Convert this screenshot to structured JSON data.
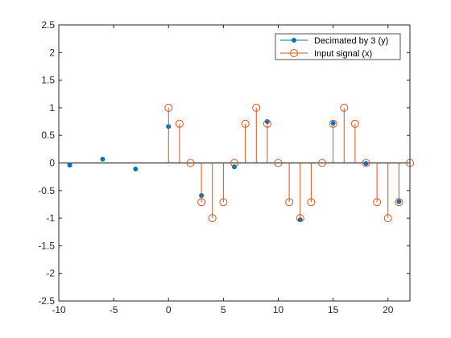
{
  "chart_data": {
    "type": "stem",
    "title": "",
    "xlabel": "",
    "ylabel": "",
    "xlim": [
      -10,
      22
    ],
    "ylim": [
      -2.5,
      2.5
    ],
    "grid": false,
    "legend_location": "top-right",
    "xticks": [
      "-10",
      "-5",
      "0",
      "5",
      "10",
      "15",
      "20"
    ],
    "yticks": [
      "-2.5",
      "-2",
      "-1.5",
      "-1",
      "-0.5",
      "0",
      "0.5",
      "1",
      "1.5",
      "2",
      "2.5"
    ],
    "series": [
      {
        "name": "Decimated by 3 (y)",
        "color": "#0072BD",
        "marker": "filled-circle",
        "stems": false,
        "x": [
          -9,
          -6,
          -3,
          0,
          3,
          6,
          9,
          12,
          15,
          18,
          21
        ],
        "y": [
          -0.04,
          0.07,
          -0.11,
          0.66,
          -0.59,
          -0.07,
          0.75,
          -1.03,
          0.72,
          -0.01,
          -0.7
        ]
      },
      {
        "name": "Input signal (x)",
        "color": "#D95319",
        "marker": "open-circle",
        "stems": true,
        "x": [
          0,
          1,
          2,
          3,
          4,
          5,
          6,
          7,
          8,
          9,
          10,
          11,
          12,
          13,
          14,
          15,
          16,
          17,
          18,
          19,
          20,
          21,
          22
        ],
        "y": [
          1,
          0.71,
          0,
          -0.71,
          -1,
          -0.71,
          0,
          0.71,
          1,
          0.71,
          0,
          -0.71,
          -1,
          -0.71,
          0,
          0.71,
          1,
          0.71,
          0,
          -0.71,
          -1,
          -0.71,
          0
        ]
      }
    ]
  }
}
